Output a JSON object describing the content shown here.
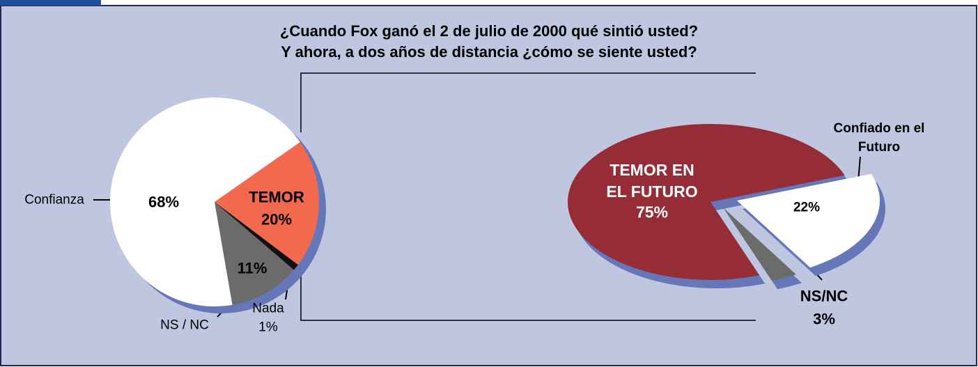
{
  "title": [
    "¿Cuando Fox ganó el 2 de julio de 2000 qué sintió usted?",
    "Y ahora, a dos años de distancia ¿cómo se siente usted?"
  ],
  "chart_data": [
    {
      "type": "pie",
      "categories": [
        "TEMOR",
        "Nada",
        "NS / NC",
        "Confianza"
      ],
      "values": [
        20,
        1,
        11,
        68
      ],
      "value_labels": [
        "20%",
        "1%",
        "11%",
        "68%"
      ],
      "colors": [
        "#f2694e",
        "#111111",
        "#6b6b6b",
        "#ffffff"
      ]
    },
    {
      "type": "pie",
      "categories": [
        "Confiado en el Futuro",
        "NS/NC",
        "TEMOR EN EL FUTURO"
      ],
      "values": [
        22,
        3,
        75
      ],
      "value_labels": [
        "22%",
        "3%",
        "75%"
      ],
      "colors": [
        "#ffffff",
        "#6b6b6b",
        "#962c36"
      ]
    }
  ]
}
